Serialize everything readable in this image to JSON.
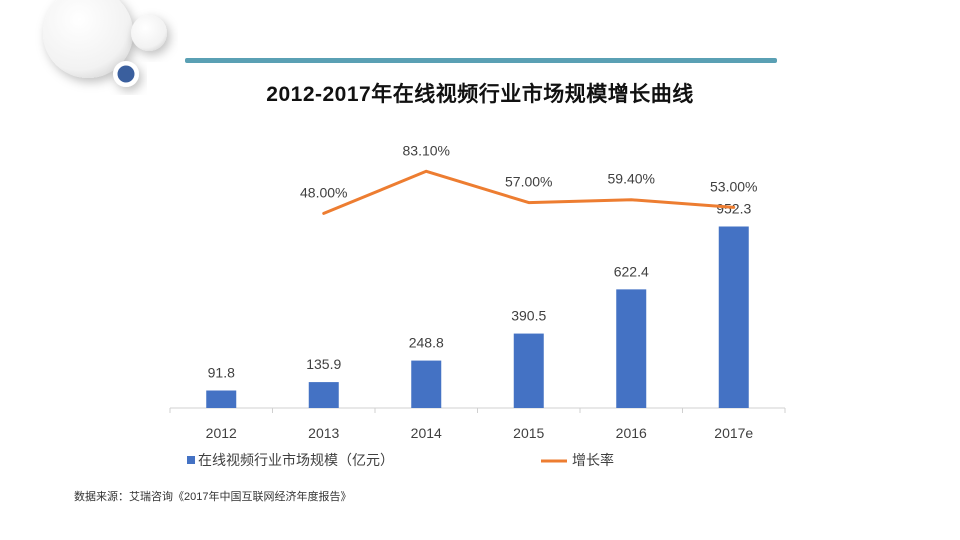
{
  "title": "2012-2017年在线视频行业市场规模增长曲线",
  "source": "数据来源：艾瑞咨询《2017年中国互联网经济年度报告》",
  "colors": {
    "bar": "#4472c4",
    "line": "#ed7d31",
    "header_line": "#5aa0b4"
  },
  "chart_data": {
    "type": "bar",
    "categories": [
      "2012",
      "2013",
      "2014",
      "2015",
      "2016",
      "2017e"
    ],
    "series": [
      {
        "name": "在线视频行业市场规模（亿元）",
        "type": "bar",
        "values": [
          91.8,
          135.9,
          248.8,
          390.5,
          622.4,
          952.3
        ],
        "labels": [
          "91.8",
          "135.9",
          "248.8",
          "390.5",
          "622.4",
          "952.3"
        ]
      },
      {
        "name": "增长率",
        "type": "line",
        "values": [
          null,
          48.0,
          83.1,
          57.0,
          59.4,
          53.0
        ],
        "labels": [
          "",
          "48.00%",
          "83.10%",
          "57.00%",
          "59.40%",
          "53.00%"
        ]
      }
    ],
    "legend": "bottom",
    "grid": false
  }
}
